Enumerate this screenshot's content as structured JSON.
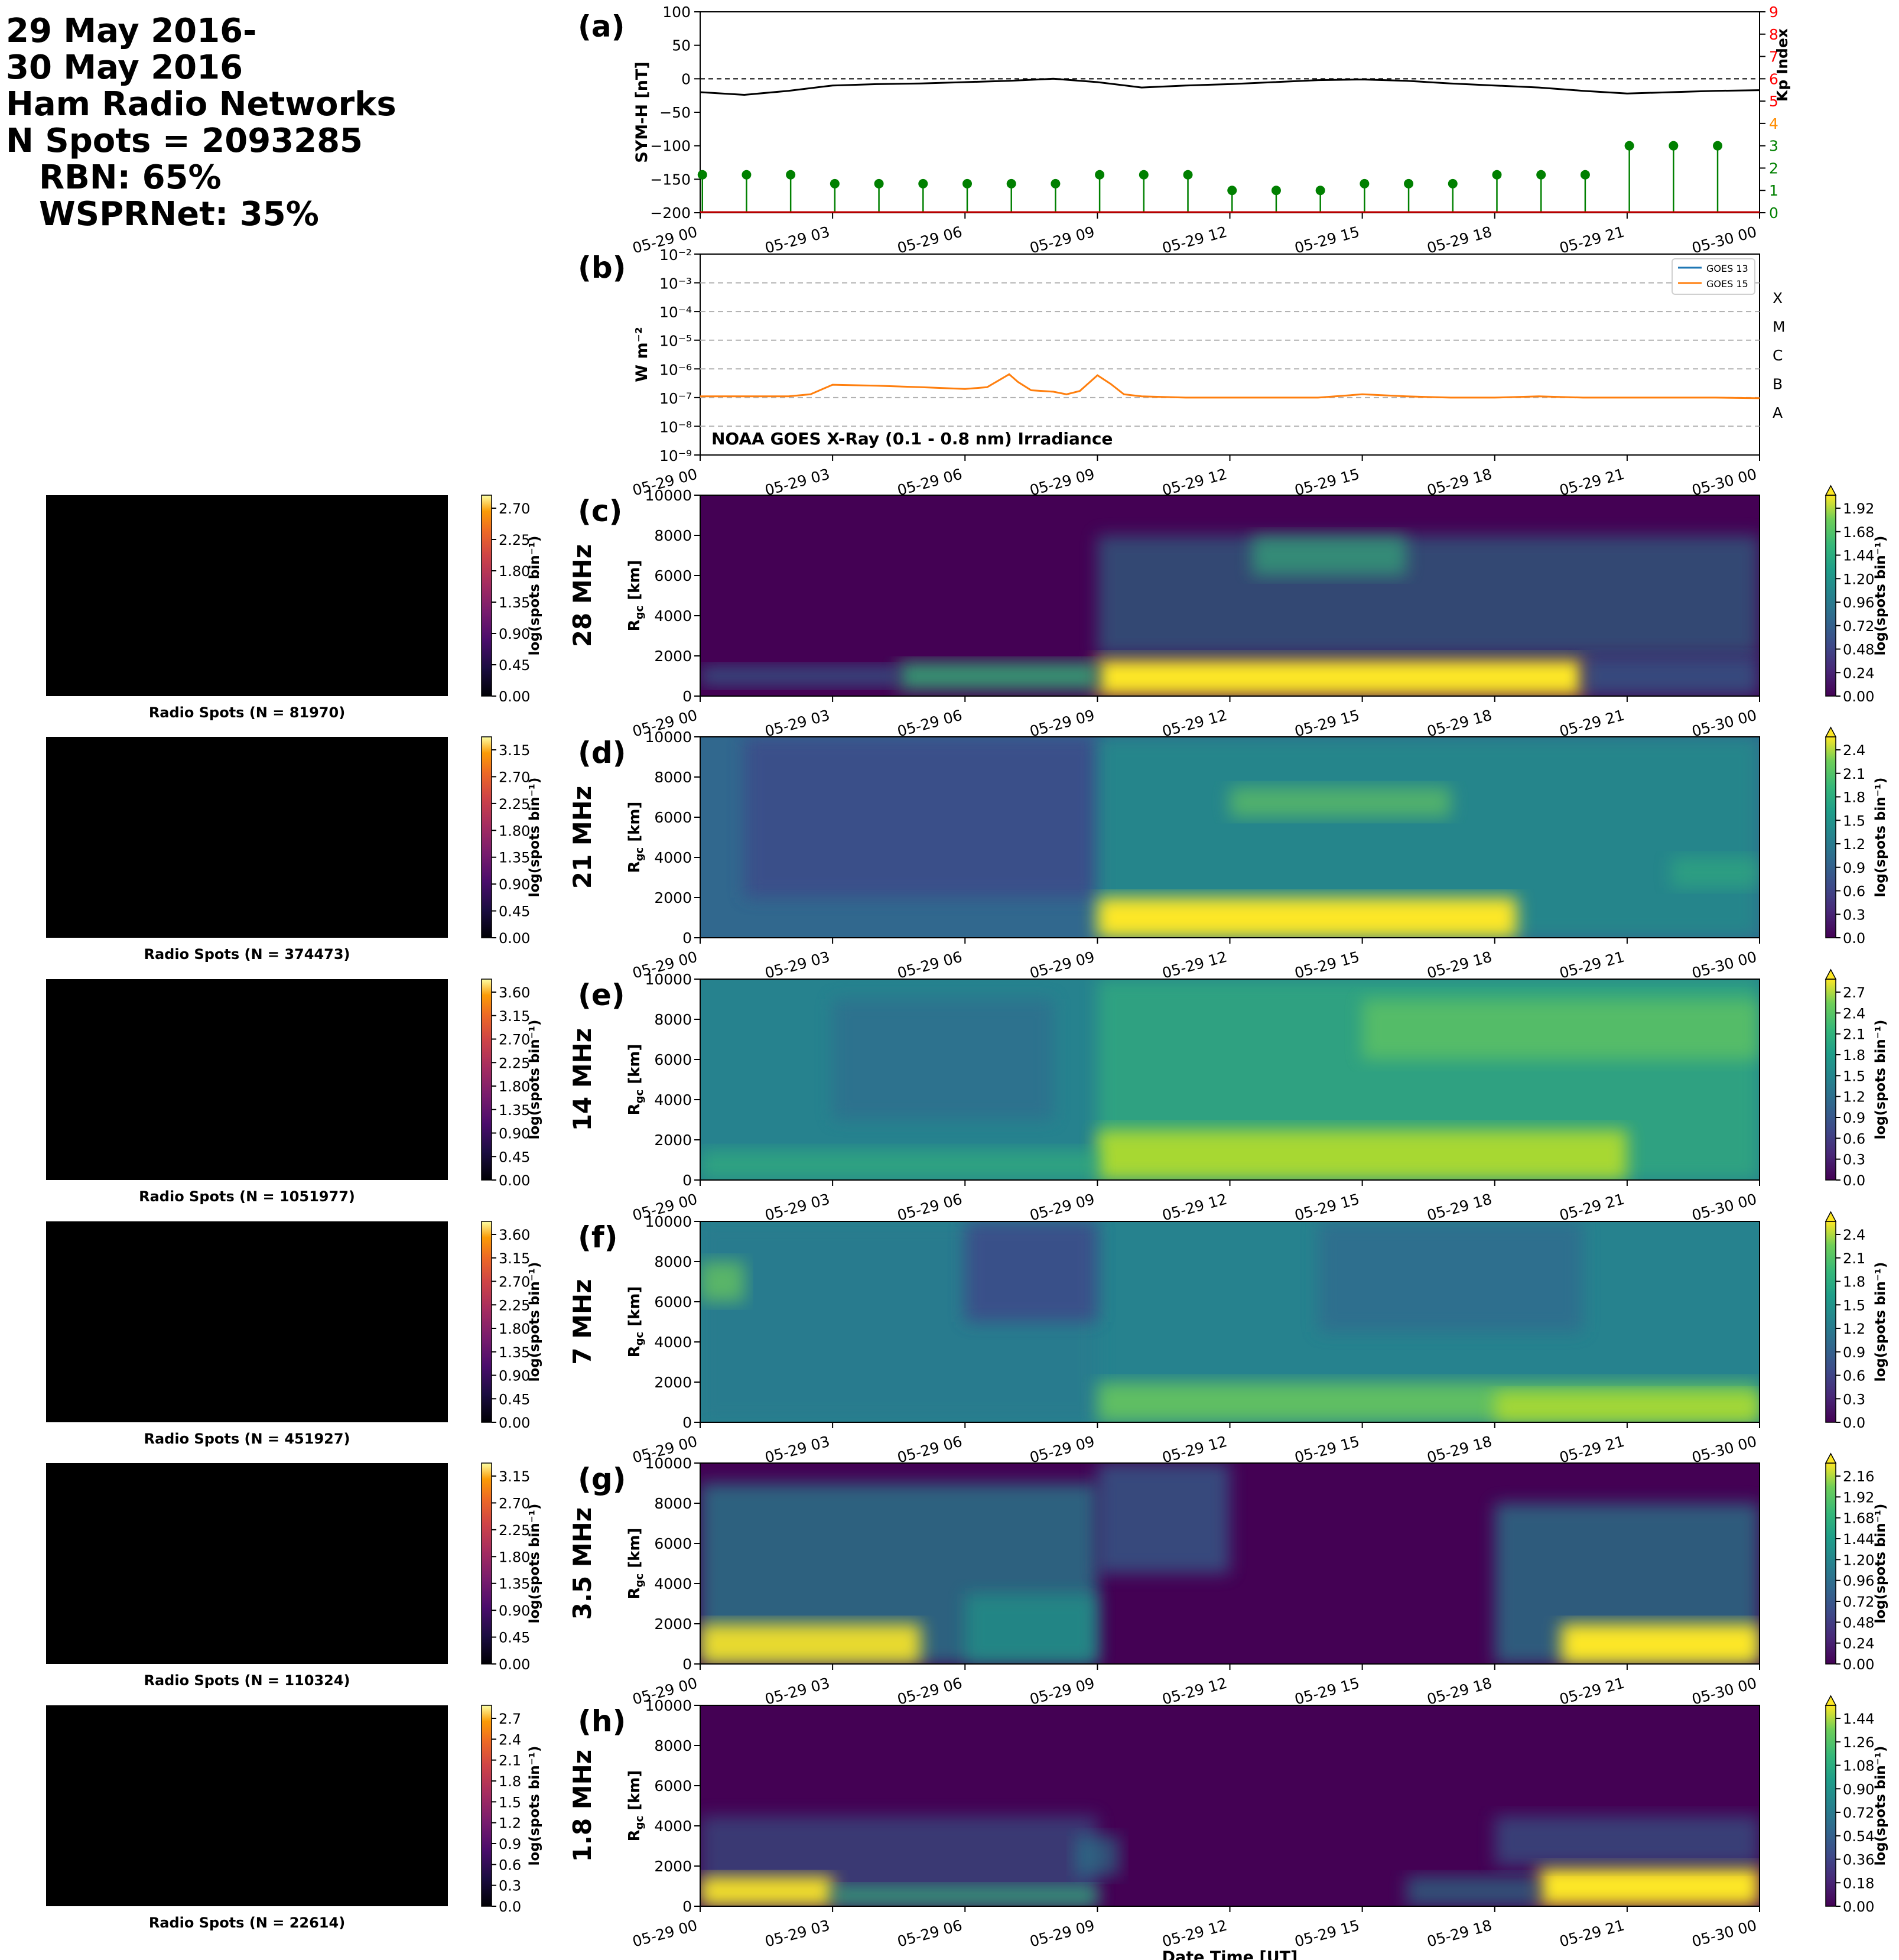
{
  "header": {
    "line1": "29 May 2016-",
    "line2": "30 May 2016",
    "line3": "Ham Radio Networks",
    "line4": "N Spots = 2093285",
    "line5": "RBN: 65%",
    "line6": "WSPRNet: 35%"
  },
  "time_ticks": [
    "05-29 00",
    "05-29 03",
    "05-29 06",
    "05-29 09",
    "05-29 12",
    "05-29 15",
    "05-29 18",
    "05-29 21",
    "05-30 00"
  ],
  "colors": {
    "symh": "#000000",
    "kp_green": "#008000",
    "kp_red": "#ff0000",
    "kp_orange": "#ff8c00",
    "goes13": "#1f77b4",
    "goes15": "#ff7f0e"
  },
  "chart_data": [
    {
      "id": "a",
      "panel_label": "(a)",
      "type": "line",
      "ylabel": "SYM-H [nT]",
      "ylabel2": "Kp Index",
      "ylim": [
        -200,
        100
      ],
      "ylim2": [
        0,
        9
      ],
      "yticks": [
        -200,
        -150,
        -100,
        -50,
        0,
        50,
        100
      ],
      "yticks2": [
        0,
        1,
        2,
        3,
        4,
        5,
        6,
        7,
        8,
        9
      ],
      "symh": {
        "x_hours": [
          0,
          1,
          2,
          3,
          4,
          5,
          6,
          7,
          8,
          9,
          10,
          11,
          12,
          13,
          14,
          15,
          16,
          17,
          18,
          19,
          20,
          21,
          22,
          23,
          24
        ],
        "values": [
          -20,
          -24,
          -18,
          -10,
          -8,
          -7,
          -5,
          -3,
          0,
          -5,
          -13,
          -10,
          -8,
          -5,
          -2,
          -1,
          -3,
          -7,
          -10,
          -13,
          -18,
          -22,
          -20,
          -18,
          -17
        ]
      },
      "kp": {
        "x_hours": [
          0,
          1,
          2,
          3,
          4,
          5,
          6,
          7,
          8,
          9,
          10,
          11,
          12,
          13,
          14,
          15,
          16,
          17,
          18,
          19,
          20,
          21,
          22,
          23
        ],
        "values": [
          1.7,
          1.7,
          1.7,
          1.3,
          1.3,
          1.3,
          1.3,
          1.3,
          1.3,
          1.7,
          1.7,
          1.7,
          1.0,
          1.0,
          1.0,
          1.3,
          1.3,
          1.3,
          1.7,
          1.7,
          1.7,
          3.0,
          3.0,
          3.0
        ]
      }
    },
    {
      "id": "b",
      "panel_label": "(b)",
      "type": "line",
      "ylabel": "W m⁻²",
      "log_scale": true,
      "ylim_exp": [
        -9,
        -2
      ],
      "ytick_labels": [
        "10⁻⁹",
        "10⁻⁸",
        "10⁻⁷",
        "10⁻⁶",
        "10⁻⁵",
        "10⁻⁴",
        "10⁻³",
        "10⁻²"
      ],
      "flare_classes": [
        {
          "label": "A",
          "exp": -8
        },
        {
          "label": "B",
          "exp": -7
        },
        {
          "label": "C",
          "exp": -6
        },
        {
          "label": "M",
          "exp": -5
        },
        {
          "label": "X",
          "exp": -4
        }
      ],
      "annotation": "NOAA GOES X-Ray (0.1 - 0.8 nm) Irradiance",
      "series": [
        {
          "name": "GOES 13",
          "x_hours": [],
          "values": []
        },
        {
          "name": "GOES 15",
          "x_hours": [
            0,
            1,
            2,
            2.5,
            3,
            4,
            5,
            6,
            6.5,
            7,
            7.2,
            7.5,
            8,
            8.3,
            8.6,
            9,
            9.3,
            9.6,
            10,
            11,
            12,
            13,
            14,
            15,
            16,
            17,
            18,
            19,
            20,
            21,
            22,
            23,
            24
          ],
          "values": [
            1.1e-07,
            1.1e-07,
            1.1e-07,
            1.3e-07,
            2.8e-07,
            2.6e-07,
            2.3e-07,
            2e-07,
            2.3e-07,
            6.5e-07,
            3.5e-07,
            1.8e-07,
            1.6e-07,
            1.3e-07,
            1.7e-07,
            6e-07,
            3e-07,
            1.3e-07,
            1.1e-07,
            1e-07,
            1e-07,
            1e-07,
            1e-07,
            1.3e-07,
            1.1e-07,
            1e-07,
            1e-07,
            1.1e-07,
            1e-07,
            1e-07,
            1e-07,
            1e-07,
            9.5e-08
          ]
        }
      ]
    },
    {
      "id": "c",
      "panel_label": "(c)",
      "band": "28 MHz",
      "type": "heatmap",
      "ylabel": "R_gc [km]",
      "ylim": [
        0,
        10000
      ],
      "yticks": [
        0,
        2000,
        4000,
        6000,
        8000,
        10000
      ],
      "cbar_label": "log(spots bin⁻¹)",
      "cbar_ticks": [
        "0.00",
        "0.24",
        "0.48",
        "0.72",
        "0.96",
        "1.20",
        "1.44",
        "1.68",
        "1.92"
      ],
      "map_title": "Radio Spots (N = 81970)",
      "map_cbar_ticks": [
        "0.00",
        "0.45",
        "0.90",
        "1.35",
        "1.80",
        "2.25",
        "2.70"
      ]
    },
    {
      "id": "d",
      "panel_label": "(d)",
      "band": "21 MHz",
      "type": "heatmap",
      "ylabel": "R_gc [km]",
      "ylim": [
        0,
        10000
      ],
      "yticks": [
        0,
        2000,
        4000,
        6000,
        8000,
        10000
      ],
      "cbar_label": "log(spots bin⁻¹)",
      "cbar_ticks": [
        "0.0",
        "0.3",
        "0.6",
        "0.9",
        "1.2",
        "1.5",
        "1.8",
        "2.1",
        "2.4"
      ],
      "map_title": "Radio Spots (N = 374473)",
      "map_cbar_ticks": [
        "0.00",
        "0.45",
        "0.90",
        "1.35",
        "1.80",
        "2.25",
        "2.70",
        "3.15"
      ]
    },
    {
      "id": "e",
      "panel_label": "(e)",
      "band": "14 MHz",
      "type": "heatmap",
      "ylabel": "R_gc [km]",
      "ylim": [
        0,
        10000
      ],
      "yticks": [
        0,
        2000,
        4000,
        6000,
        8000,
        10000
      ],
      "cbar_label": "log(spots bin⁻¹)",
      "cbar_ticks": [
        "0.0",
        "0.3",
        "0.6",
        "0.9",
        "1.2",
        "1.5",
        "1.8",
        "2.1",
        "2.4",
        "2.7"
      ],
      "map_title": "Radio Spots (N = 1051977)",
      "map_cbar_ticks": [
        "0.00",
        "0.45",
        "0.90",
        "1.35",
        "1.80",
        "2.25",
        "2.70",
        "3.15",
        "3.60"
      ]
    },
    {
      "id": "f",
      "panel_label": "(f)",
      "band": "7 MHz",
      "type": "heatmap",
      "ylabel": "R_gc [km]",
      "ylim": [
        0,
        10000
      ],
      "yticks": [
        0,
        2000,
        4000,
        6000,
        8000,
        10000
      ],
      "cbar_label": "log(spots bin⁻¹)",
      "cbar_ticks": [
        "0.0",
        "0.3",
        "0.6",
        "0.9",
        "1.2",
        "1.5",
        "1.8",
        "2.1",
        "2.4"
      ],
      "map_title": "Radio Spots (N = 451927)",
      "map_cbar_ticks": [
        "0.00",
        "0.45",
        "0.90",
        "1.35",
        "1.80",
        "2.25",
        "2.70",
        "3.15",
        "3.60"
      ]
    },
    {
      "id": "g",
      "panel_label": "(g)",
      "band": "3.5 MHz",
      "type": "heatmap",
      "ylabel": "R_gc [km]",
      "ylim": [
        0,
        10000
      ],
      "yticks": [
        0,
        2000,
        4000,
        6000,
        8000,
        10000
      ],
      "cbar_label": "log(spots bin⁻¹)",
      "cbar_ticks": [
        "0.00",
        "0.24",
        "0.48",
        "0.72",
        "0.96",
        "1.20",
        "1.44",
        "1.68",
        "1.92",
        "2.16"
      ],
      "map_title": "Radio Spots (N = 110324)",
      "map_cbar_ticks": [
        "0.00",
        "0.45",
        "0.90",
        "1.35",
        "1.80",
        "2.25",
        "2.70",
        "3.15"
      ]
    },
    {
      "id": "h",
      "panel_label": "(h)",
      "band": "1.8 MHz",
      "type": "heatmap",
      "ylabel": "R_gc [km]",
      "ylim": [
        0,
        10000
      ],
      "yticks": [
        0,
        2000,
        4000,
        6000,
        8000,
        10000
      ],
      "xlabel": "Date Time [UT]",
      "cbar_label": "log(spots bin⁻¹)",
      "cbar_ticks": [
        "0.00",
        "0.18",
        "0.36",
        "0.54",
        "0.72",
        "0.90",
        "1.08",
        "1.26",
        "1.44"
      ],
      "map_title": "Radio Spots (N = 22614)",
      "map_cbar_ticks": [
        "0.0",
        "0.3",
        "0.6",
        "0.9",
        "1.2",
        "1.5",
        "1.8",
        "2.1",
        "2.4",
        "2.7"
      ]
    }
  ]
}
